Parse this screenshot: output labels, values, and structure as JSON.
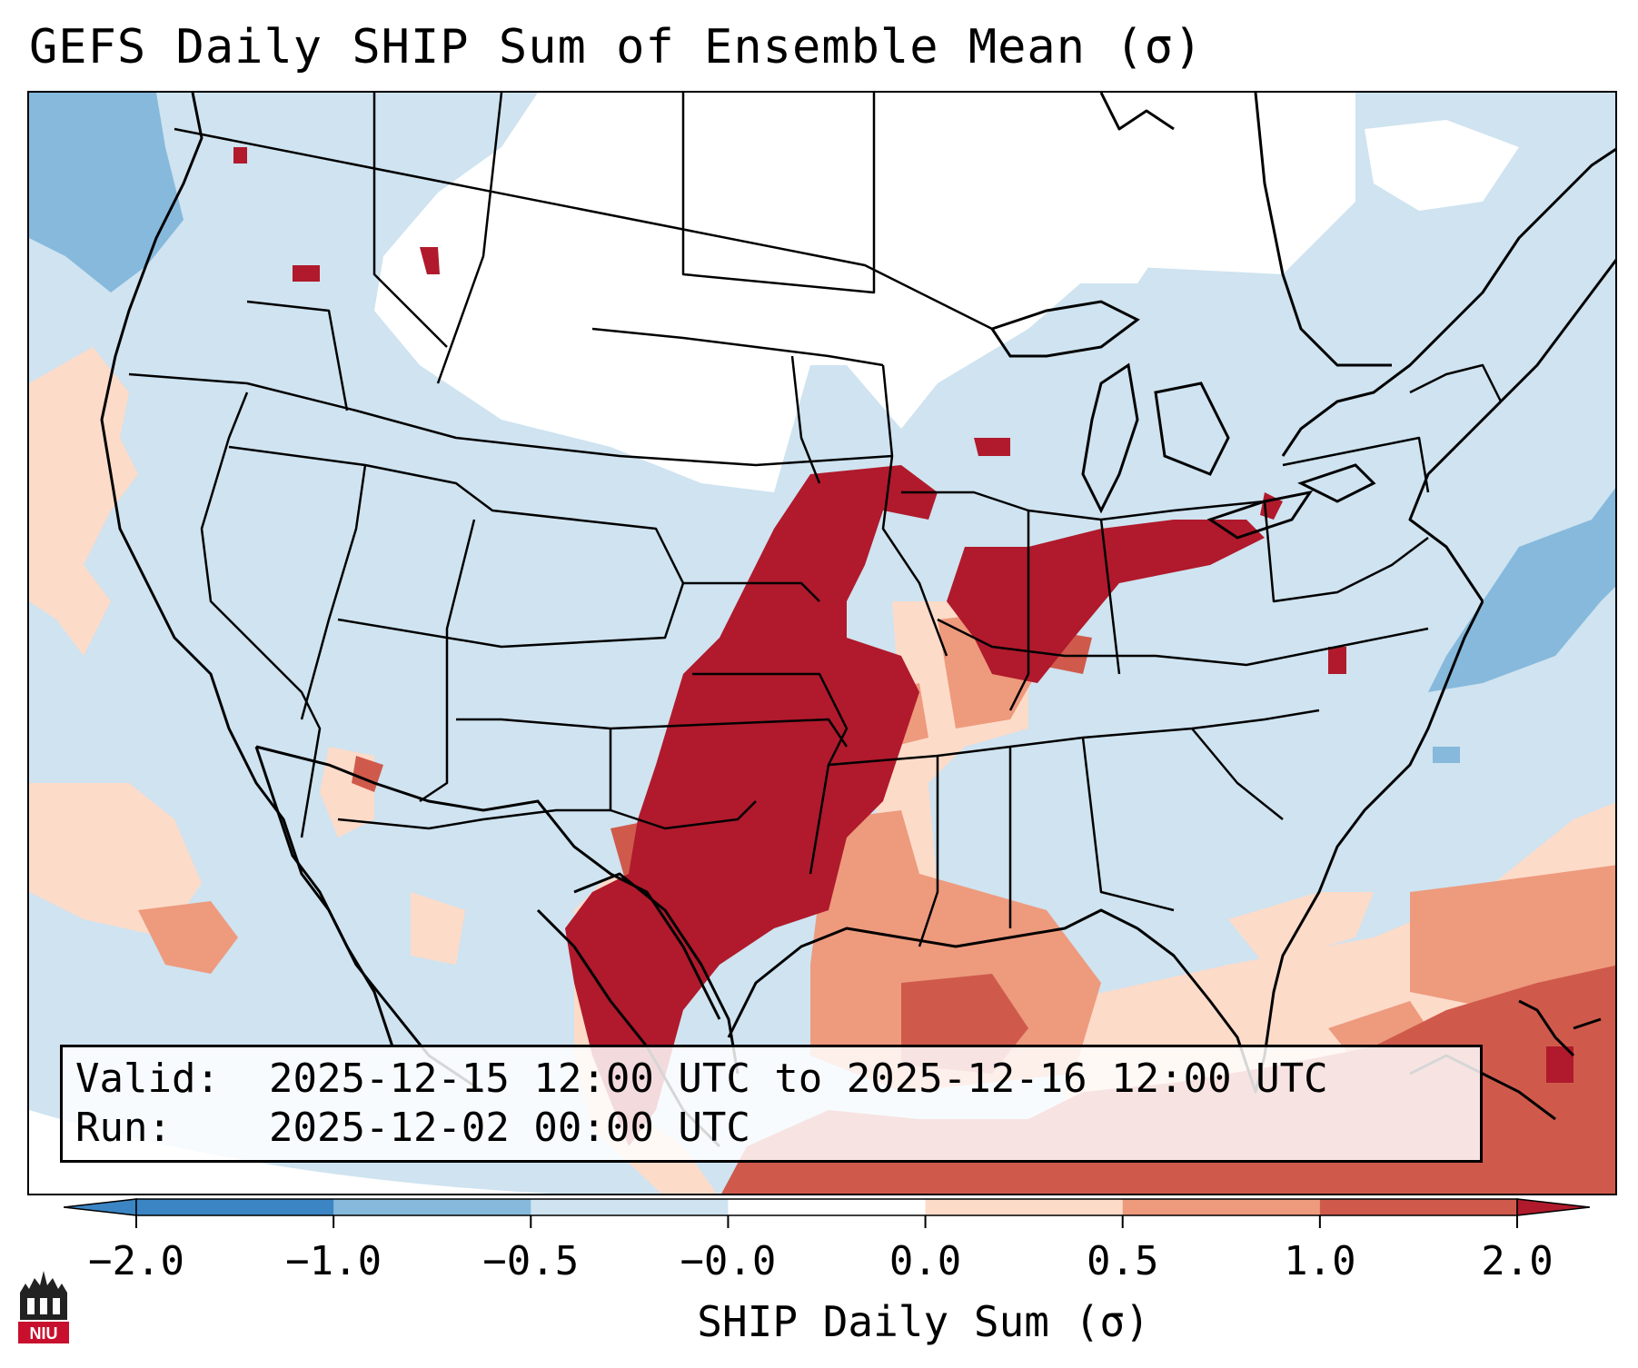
{
  "title": "GEFS Daily SHIP Sum of Ensemble Mean (σ)",
  "map": {
    "projection": "Lambert conformal, CONUS",
    "variable": "SHIP daily sum (σ)",
    "features": [
      "state-borders",
      "coastlines",
      "country-borders",
      "great-lakes"
    ]
  },
  "info": {
    "valid_label": "Valid:",
    "valid_value": "2025-12-15 12:00 UTC to 2025-12-16 12:00 UTC",
    "run_label": "Run:",
    "run_value": "2025-12-02 00:00 UTC"
  },
  "colorbar": {
    "label": "SHIP Daily Sum (σ)",
    "ticks": [
      "−2.0",
      "−1.0",
      "−0.5",
      "−0.0",
      "0.0",
      "0.5",
      "1.0",
      "2.0"
    ],
    "colors": [
      "#3b85c4",
      "#86b9dc",
      "#cfe3f0",
      "#ffffff",
      "#fcdbc9",
      "#ee9a7d",
      "#cf5a4c",
      "#b01a2c"
    ],
    "extend_min_color": "#3b85c4",
    "extend_max_color": "#b01a2c"
  },
  "logo": {
    "text": "NIU",
    "color": "#c8102e"
  }
}
